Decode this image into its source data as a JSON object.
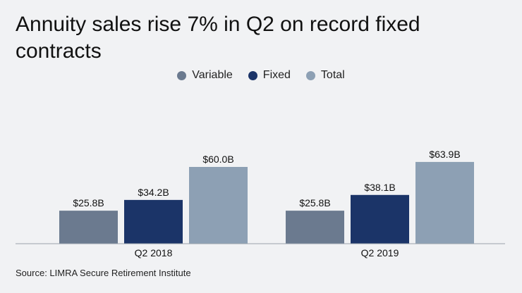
{
  "chart_data": {
    "type": "bar",
    "title": "Annuity sales rise 7% in Q2 on record fixed contracts",
    "categories": [
      "Q2 2018",
      "Q2 2019"
    ],
    "series": [
      {
        "name": "Variable",
        "color": "#6b7a8f",
        "values": [
          25.8,
          25.8
        ],
        "labels": [
          "$25.8B",
          "$25.8B"
        ]
      },
      {
        "name": "Fixed",
        "color": "#1b3468",
        "values": [
          34.2,
          38.1
        ],
        "labels": [
          "$34.2B",
          "$38.1B"
        ]
      },
      {
        "name": "Total",
        "color": "#8da0b4",
        "values": [
          60.0,
          63.9
        ],
        "labels": [
          "$60.0B",
          "$63.9B"
        ]
      }
    ],
    "xlabel": "",
    "ylabel": "",
    "ylim": [
      0,
      80
    ],
    "legend_position": "top-center",
    "grid": false
  },
  "source": "Source: LIMRA Secure Retirement Institute"
}
